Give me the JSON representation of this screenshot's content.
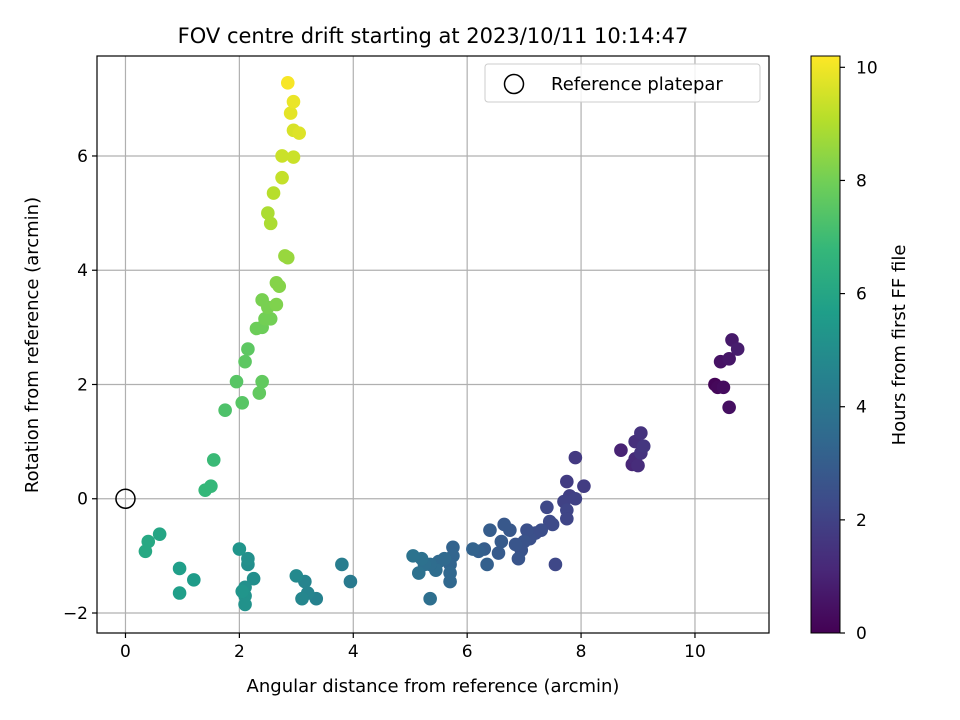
{
  "chart_data": {
    "type": "scatter",
    "title": "FOV centre drift starting at 2023/10/11 10:14:47",
    "xlabel": "Angular distance from reference (arcmin)",
    "ylabel": "Rotation from reference (arcmin)",
    "xlim": [
      -0.5,
      11.3
    ],
    "ylim": [
      -2.35,
      7.75
    ],
    "xticks": [
      0,
      2,
      4,
      6,
      8,
      10
    ],
    "yticks": [
      -2,
      0,
      2,
      4,
      6
    ],
    "grid": true,
    "legend": {
      "position": "top-right",
      "entries": [
        "Reference platepar"
      ]
    },
    "reference": {
      "x": 0,
      "y": 0
    },
    "colorbar": {
      "label": "Hours from first FF file",
      "range": [
        0,
        10.2
      ],
      "ticks": [
        0,
        2,
        4,
        6,
        8,
        10
      ],
      "colormap": "viridis",
      "stops": [
        "#440154",
        "#482878",
        "#3e4a89",
        "#31688e",
        "#26828e",
        "#1f9e89",
        "#35b779",
        "#6ece58",
        "#b5de2b",
        "#fde725"
      ]
    },
    "points": [
      {
        "x": 10.35,
        "y": 2.0,
        "h": 0.1
      },
      {
        "x": 10.4,
        "y": 1.95,
        "h": 0.2
      },
      {
        "x": 10.5,
        "y": 1.95,
        "h": 0.3
      },
      {
        "x": 10.6,
        "y": 1.6,
        "h": 0.4
      },
      {
        "x": 10.45,
        "y": 2.4,
        "h": 0.5
      },
      {
        "x": 10.6,
        "y": 2.45,
        "h": 0.6
      },
      {
        "x": 10.65,
        "y": 2.78,
        "h": 0.7
      },
      {
        "x": 10.75,
        "y": 2.62,
        "h": 0.8
      },
      {
        "x": 8.7,
        "y": 0.85,
        "h": 1.0
      },
      {
        "x": 8.9,
        "y": 0.6,
        "h": 1.1
      },
      {
        "x": 8.95,
        "y": 0.7,
        "h": 1.2
      },
      {
        "x": 9.0,
        "y": 0.58,
        "h": 1.3
      },
      {
        "x": 8.95,
        "y": 1.0,
        "h": 1.4
      },
      {
        "x": 9.05,
        "y": 0.8,
        "h": 1.5
      },
      {
        "x": 9.05,
        "y": 1.15,
        "h": 1.5
      },
      {
        "x": 9.1,
        "y": 0.92,
        "h": 1.6
      },
      {
        "x": 7.9,
        "y": 0.72,
        "h": 1.7
      },
      {
        "x": 8.05,
        "y": 0.22,
        "h": 1.8
      },
      {
        "x": 7.75,
        "y": 0.3,
        "h": 1.8
      },
      {
        "x": 7.8,
        "y": 0.05,
        "h": 1.9
      },
      {
        "x": 7.9,
        "y": 0.0,
        "h": 2.0
      },
      {
        "x": 7.7,
        "y": -0.05,
        "h": 2.0
      },
      {
        "x": 7.75,
        "y": -0.2,
        "h": 2.1
      },
      {
        "x": 7.75,
        "y": -0.35,
        "h": 2.1
      },
      {
        "x": 7.55,
        "y": -1.15,
        "h": 2.2
      },
      {
        "x": 7.4,
        "y": -0.15,
        "h": 2.2
      },
      {
        "x": 7.45,
        "y": -0.4,
        "h": 2.3
      },
      {
        "x": 7.5,
        "y": -0.45,
        "h": 2.3
      },
      {
        "x": 7.3,
        "y": -0.55,
        "h": 2.4
      },
      {
        "x": 7.2,
        "y": -0.6,
        "h": 2.4
      },
      {
        "x": 7.1,
        "y": -0.7,
        "h": 2.5
      },
      {
        "x": 7.05,
        "y": -0.55,
        "h": 2.5
      },
      {
        "x": 7.0,
        "y": -0.75,
        "h": 2.6
      },
      {
        "x": 6.95,
        "y": -0.9,
        "h": 2.6
      },
      {
        "x": 6.9,
        "y": -1.05,
        "h": 2.7
      },
      {
        "x": 6.85,
        "y": -0.8,
        "h": 2.7
      },
      {
        "x": 6.75,
        "y": -0.55,
        "h": 2.8
      },
      {
        "x": 6.65,
        "y": -0.45,
        "h": 2.8
      },
      {
        "x": 6.6,
        "y": -0.75,
        "h": 2.9
      },
      {
        "x": 6.55,
        "y": -0.95,
        "h": 2.9
      },
      {
        "x": 6.4,
        "y": -0.55,
        "h": 3.0
      },
      {
        "x": 6.3,
        "y": -0.88,
        "h": 3.0
      },
      {
        "x": 6.35,
        "y": -1.15,
        "h": 3.1
      },
      {
        "x": 6.2,
        "y": -0.92,
        "h": 3.1
      },
      {
        "x": 6.1,
        "y": -0.88,
        "h": 3.2
      },
      {
        "x": 5.75,
        "y": -0.85,
        "h": 3.2
      },
      {
        "x": 5.75,
        "y": -1.0,
        "h": 3.3
      },
      {
        "x": 5.7,
        "y": -1.15,
        "h": 3.3
      },
      {
        "x": 5.7,
        "y": -1.3,
        "h": 3.4
      },
      {
        "x": 5.7,
        "y": -1.45,
        "h": 3.4
      },
      {
        "x": 5.6,
        "y": -1.05,
        "h": 3.5
      },
      {
        "x": 5.5,
        "y": -1.1,
        "h": 3.5
      },
      {
        "x": 5.45,
        "y": -1.25,
        "h": 3.6
      },
      {
        "x": 5.35,
        "y": -1.15,
        "h": 3.6
      },
      {
        "x": 5.35,
        "y": -1.75,
        "h": 3.7
      },
      {
        "x": 5.25,
        "y": -1.15,
        "h": 3.7
      },
      {
        "x": 5.2,
        "y": -1.05,
        "h": 3.8
      },
      {
        "x": 5.15,
        "y": -1.3,
        "h": 3.8
      },
      {
        "x": 5.05,
        "y": -1.0,
        "h": 3.9
      },
      {
        "x": 3.95,
        "y": -1.45,
        "h": 4.2
      },
      {
        "x": 3.8,
        "y": -1.15,
        "h": 4.3
      },
      {
        "x": 3.35,
        "y": -1.75,
        "h": 4.5
      },
      {
        "x": 3.2,
        "y": -1.65,
        "h": 4.6
      },
      {
        "x": 3.15,
        "y": -1.45,
        "h": 4.6
      },
      {
        "x": 3.1,
        "y": -1.75,
        "h": 4.7
      },
      {
        "x": 3.0,
        "y": -1.35,
        "h": 4.8
      },
      {
        "x": 2.25,
        "y": -1.4,
        "h": 5.0
      },
      {
        "x": 2.15,
        "y": -1.15,
        "h": 5.0
      },
      {
        "x": 2.15,
        "y": -1.05,
        "h": 5.1
      },
      {
        "x": 2.1,
        "y": -1.55,
        "h": 5.1
      },
      {
        "x": 2.1,
        "y": -1.7,
        "h": 5.2
      },
      {
        "x": 2.1,
        "y": -1.85,
        "h": 5.2
      },
      {
        "x": 2.05,
        "y": -1.62,
        "h": 5.3
      },
      {
        "x": 2.0,
        "y": -0.88,
        "h": 5.3
      },
      {
        "x": 1.2,
        "y": -1.42,
        "h": 5.6
      },
      {
        "x": 0.95,
        "y": -1.22,
        "h": 5.7
      },
      {
        "x": 0.95,
        "y": -1.65,
        "h": 5.7
      },
      {
        "x": 0.6,
        "y": -0.62,
        "h": 6.0
      },
      {
        "x": 0.4,
        "y": -0.75,
        "h": 6.1
      },
      {
        "x": 0.35,
        "y": -0.92,
        "h": 6.1
      },
      {
        "x": 1.4,
        "y": 0.15,
        "h": 6.8
      },
      {
        "x": 1.5,
        "y": 0.22,
        "h": 6.8
      },
      {
        "x": 1.55,
        "y": 0.68,
        "h": 6.9
      },
      {
        "x": 1.75,
        "y": 1.55,
        "h": 7.3
      },
      {
        "x": 1.95,
        "y": 2.05,
        "h": 7.5
      },
      {
        "x": 2.05,
        "y": 1.68,
        "h": 7.5
      },
      {
        "x": 2.1,
        "y": 2.4,
        "h": 7.6
      },
      {
        "x": 2.15,
        "y": 2.62,
        "h": 7.6
      },
      {
        "x": 2.35,
        "y": 1.85,
        "h": 7.7
      },
      {
        "x": 2.4,
        "y": 2.05,
        "h": 7.7
      },
      {
        "x": 2.3,
        "y": 2.98,
        "h": 7.9
      },
      {
        "x": 2.4,
        "y": 3.0,
        "h": 7.9
      },
      {
        "x": 2.45,
        "y": 3.15,
        "h": 8.0
      },
      {
        "x": 2.55,
        "y": 3.15,
        "h": 8.0
      },
      {
        "x": 2.4,
        "y": 3.48,
        "h": 8.1
      },
      {
        "x": 2.5,
        "y": 3.35,
        "h": 8.1
      },
      {
        "x": 2.65,
        "y": 3.4,
        "h": 8.2
      },
      {
        "x": 2.65,
        "y": 3.78,
        "h": 8.3
      },
      {
        "x": 2.7,
        "y": 3.72,
        "h": 8.3
      },
      {
        "x": 2.8,
        "y": 4.25,
        "h": 8.6
      },
      {
        "x": 2.85,
        "y": 4.22,
        "h": 8.6
      },
      {
        "x": 2.5,
        "y": 5.0,
        "h": 8.9
      },
      {
        "x": 2.55,
        "y": 4.82,
        "h": 8.9
      },
      {
        "x": 2.6,
        "y": 5.35,
        "h": 9.1
      },
      {
        "x": 2.75,
        "y": 5.62,
        "h": 9.3
      },
      {
        "x": 2.75,
        "y": 6.0,
        "h": 9.4
      },
      {
        "x": 2.95,
        "y": 5.98,
        "h": 9.4
      },
      {
        "x": 2.95,
        "y": 6.45,
        "h": 9.6
      },
      {
        "x": 3.05,
        "y": 6.4,
        "h": 9.7
      },
      {
        "x": 2.9,
        "y": 6.75,
        "h": 9.8
      },
      {
        "x": 2.95,
        "y": 6.95,
        "h": 9.9
      },
      {
        "x": 2.85,
        "y": 7.28,
        "h": 10.1
      }
    ]
  }
}
